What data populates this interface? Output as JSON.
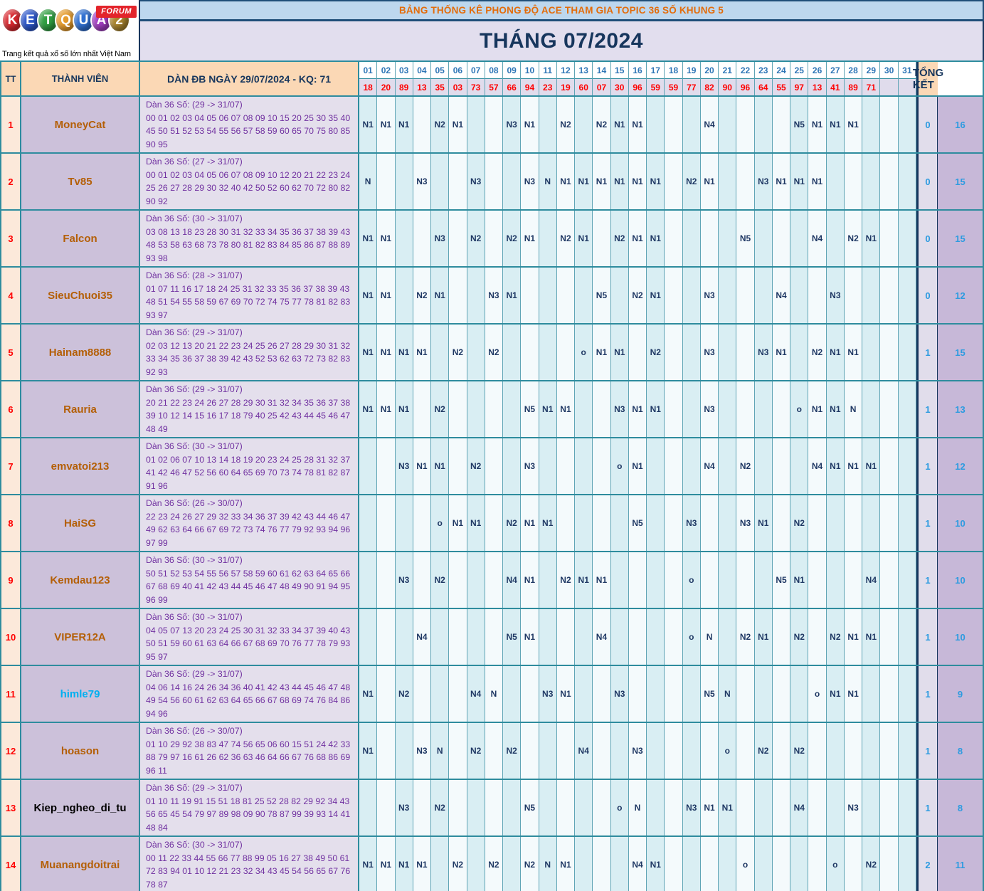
{
  "logo": {
    "letters": [
      {
        "ch": "K",
        "color": "#D7282F"
      },
      {
        "ch": "E",
        "color": "#2B55C8"
      },
      {
        "ch": "T",
        "color": "#2F9E41"
      },
      {
        "ch": "Q",
        "color": "#E59B2C"
      },
      {
        "ch": "U",
        "color": "#2F6FD0"
      },
      {
        "ch": "A",
        "color": "#A13EC0"
      },
      {
        "ch": "2",
        "color": "#A9842E"
      }
    ],
    "forum_label": "FORUM",
    "tagline": "Trang kết quả xổ số lớn nhất Việt Nam"
  },
  "header": {
    "topic_title": "BẢNG THỐNG KÊ PHONG ĐỘ ACE THAM GIA TOPIC 36 SỐ KHUNG 5",
    "month_title": "THÁNG 07/2024"
  },
  "table": {
    "headers": {
      "tt": "TT",
      "member": "THÀNH VIÊN",
      "dan": "DÀN ĐB NGÀY 29/07/2024 - KQ: 71",
      "total": "TỔNG KẾT"
    },
    "days": [
      "01",
      "02",
      "03",
      "04",
      "05",
      "06",
      "07",
      "08",
      "09",
      "10",
      "11",
      "12",
      "13",
      "14",
      "15",
      "16",
      "17",
      "18",
      "19",
      "20",
      "21",
      "22",
      "23",
      "24",
      "25",
      "26",
      "27",
      "28",
      "29",
      "30",
      "31"
    ],
    "kq": [
      "18",
      "20",
      "89",
      "13",
      "35",
      "03",
      "73",
      "57",
      "66",
      "94",
      "23",
      "19",
      "60",
      "07",
      "30",
      "96",
      "59",
      "59",
      "77",
      "82",
      "90",
      "96",
      "64",
      "55",
      "97",
      "13",
      "41",
      "89",
      "71",
      "",
      ""
    ],
    "members": [
      {
        "tt": "1",
        "name": "MoneyCat",
        "name_color": "#B45F06",
        "dan_range": "Dàn 36 Số: (29 -> 31/07)",
        "dan_numbers": "00 01 02 03 04 05 06 07 08 09 10 15 20 25 30 35 40 45 50 51 52 53 54 55 56 57 58 59 60 65 70 75 80 85 90 95",
        "marks": {
          "1": "N1",
          "2": "N1",
          "3": "N1",
          "5": "N2",
          "6": "N1",
          "9": "N3",
          "10": "N1",
          "12": "N2",
          "14": "N2",
          "15": "N1",
          "16": "N1",
          "20": "N4",
          "25": "N5",
          "26": "N1",
          "27": "N1",
          "28": "N1"
        },
        "total_miss": "0",
        "total_win": "16"
      },
      {
        "tt": "2",
        "name": "Tv85",
        "name_color": "#B45F06",
        "dan_range": "Dàn 36 Số: (27 -> 31/07)",
        "dan_numbers": "00 01 02 03 04 05 06 07 08 09 10 12 20 21 22 23 24 25 26 27 28 29 30 32 40 42 50 52 60 62 70 72 80 82 90 92",
        "marks": {
          "1": "N",
          "4": "N3",
          "7": "N3",
          "10": "N3",
          "11": "N",
          "12": "N1",
          "13": "N1",
          "14": "N1",
          "15": "N1",
          "16": "N1",
          "17": "N1",
          "19": "N2",
          "20": "N1",
          "23": "N3",
          "24": "N1",
          "25": "N1",
          "26": "N1"
        },
        "total_miss": "0",
        "total_win": "15"
      },
      {
        "tt": "3",
        "name": "Falcon",
        "name_color": "#B45F06",
        "dan_range": "Dàn 36 Số: (30 -> 31/07)",
        "dan_numbers": "03 08 13 18 23 28 30 31 32 33 34 35 36 37 38 39 43 48 53 58 63 68 73 78 80 81 82 83 84 85 86 87 88 89 93 98",
        "marks": {
          "1": "N1",
          "2": "N1",
          "5": "N3",
          "7": "N2",
          "9": "N2",
          "10": "N1",
          "12": "N2",
          "13": "N1",
          "15": "N2",
          "16": "N1",
          "17": "N1",
          "22": "N5",
          "26": "N4",
          "28": "N2",
          "29": "N1"
        },
        "total_miss": "0",
        "total_win": "15"
      },
      {
        "tt": "4",
        "name": "SieuChuoi35",
        "name_color": "#B45F06",
        "dan_range": "Dàn 36 Số: (28 -> 31/07)",
        "dan_numbers": "01 07 11 16 17 18 24 25 31 32 33 35 36 37 38 39 43 48 51 54 55 58 59 67 69 70 72 74 75 77 78 81 82 83 93 97",
        "marks": {
          "1": "N1",
          "2": "N1",
          "4": "N2",
          "5": "N1",
          "8": "N3",
          "9": "N1",
          "14": "N5",
          "16": "N2",
          "17": "N1",
          "20": "N3",
          "24": "N4",
          "27": "N3"
        },
        "total_miss": "0",
        "total_win": "12"
      },
      {
        "tt": "5",
        "name": "Hainam8888",
        "name_color": "#B45F06",
        "dan_range": "Dàn 36 Số: (29 -> 31/07)",
        "dan_numbers": "02 03 12 13 20 21 22 23 24 25 26 27 28 29 30 31 32 33 34 35 36 37 38 39 42 43 52 53 62 63 72 73 82 83 92 93",
        "marks": {
          "1": "N1",
          "2": "N1",
          "3": "N1",
          "4": "N1",
          "6": "N2",
          "8": "N2",
          "13": "o",
          "14": "N1",
          "15": "N1",
          "17": "N2",
          "20": "N3",
          "23": "N3",
          "24": "N1",
          "26": "N2",
          "27": "N1",
          "28": "N1"
        },
        "total_miss": "1",
        "total_win": "15"
      },
      {
        "tt": "6",
        "name": "Rauria",
        "name_color": "#B45F06",
        "dan_range": "Dàn 36 Số: (29 -> 31/07)",
        "dan_numbers": "20 21 22 23 24 26 27 28 29 30 31 32 34 35 36 37 38 39 10 12 14 15 16 17 18 79 40 25 42 43 44 45 46 47 48 49",
        "marks": {
          "1": "N1",
          "2": "N1",
          "3": "N1",
          "5": "N2",
          "10": "N5",
          "11": "N1",
          "12": "N1",
          "15": "N3",
          "16": "N1",
          "17": "N1",
          "20": "N3",
          "25": "o",
          "26": "N1",
          "27": "N1",
          "28": "N"
        },
        "total_miss": "1",
        "total_win": "13"
      },
      {
        "tt": "7",
        "name": "emvatoi213",
        "name_color": "#B45F06",
        "dan_range": "Dàn 36 Số: (30 -> 31/07)",
        "dan_numbers": "01 02 06 07 10 13 14 18 19 20 23 24 25 28 31 32 37 41 42 46 47 52 56 60 64 65 69 70 73 74 78 81 82 87 91 96",
        "marks": {
          "3": "N3",
          "4": "N1",
          "5": "N1",
          "7": "N2",
          "10": "N3",
          "15": "o",
          "16": "N1",
          "20": "N4",
          "22": "N2",
          "26": "N4",
          "27": "N1",
          "28": "N1",
          "29": "N1"
        },
        "total_miss": "1",
        "total_win": "12"
      },
      {
        "tt": "8",
        "name": "HaiSG",
        "name_color": "#B45F06",
        "dan_range": "Dàn 36 Số: (26 -> 30/07)",
        "dan_numbers": "22 23 24 26 27 29 32 33 34 36 37 39 42 43 44 46 47 49 62 63 64 66 67 69 72 73 74 76 77 79 92 93 94 96 97 99",
        "marks": {
          "5": "o",
          "6": "N1",
          "7": "N1",
          "9": "N2",
          "10": "N1",
          "11": "N1",
          "16": "N5",
          "19": "N3",
          "22": "N3",
          "23": "N1",
          "25": "N2"
        },
        "total_miss": "1",
        "total_win": "10"
      },
      {
        "tt": "9",
        "name": "Kemdau123",
        "name_color": "#B45F06",
        "dan_range": "Dàn 36 Số: (30 -> 31/07)",
        "dan_numbers": "50 51 52 53 54 55 56 57 58 59 60 61 62 63 64 65 66 67 68 69 40 41 42 43 44 45 46 47 48 49 90 91 94 95 96 99",
        "marks": {
          "3": "N3",
          "5": "N2",
          "9": "N4",
          "10": "N1",
          "12": "N2",
          "13": "N1",
          "14": "N1",
          "19": "o",
          "24": "N5",
          "25": "N1",
          "29": "N4"
        },
        "total_miss": "1",
        "total_win": "10"
      },
      {
        "tt": "10",
        "name": "VIPER12A",
        "name_color": "#B45F06",
        "dan_range": "Dàn 36 Số: (30 -> 31/07)",
        "dan_numbers": "04 05 07 13 20 23 24 25 30 31 32 33 34 37 39 40 43 50 51 59 60 61 63 64 66 67 68 69 70 76 77 78 79 93 95 97",
        "marks": {
          "4": "N4",
          "9": "N5",
          "10": "N1",
          "14": "N4",
          "19": "o",
          "20": "N",
          "22": "N2",
          "23": "N1",
          "25": "N2",
          "27": "N2",
          "28": "N1",
          "29": "N1"
        },
        "total_miss": "1",
        "total_win": "10"
      },
      {
        "tt": "11",
        "name": "himle79",
        "name_color": "#00B0F0",
        "dan_range": "Dàn 36 Số: (29 -> 31/07)",
        "dan_numbers": "04 06 14 16 24 26 34 36 40 41 42 43 44 45 46 47 48 49 54 56 60 61 62 63 64 65 66 67 68 69 74 76 84 86 94 96",
        "marks": {
          "1": "N1",
          "3": "N2",
          "7": "N4",
          "8": "N",
          "11": "N3",
          "12": "N1",
          "15": "N3",
          "20": "N5",
          "21": "N",
          "26": "o",
          "27": "N1",
          "28": "N1"
        },
        "total_miss": "1",
        "total_win": "9"
      },
      {
        "tt": "12",
        "name": "hoason",
        "name_color": "#B45F06",
        "dan_range": "Dàn 36 Số: (26 -> 30/07)",
        "dan_numbers": "01 10 29 92 38 83 47 74 56 65 06 60 15 51 24 42 33 88 79 97 16 61 26 62 36 63 46 64 66 67 76 68 86 69 96 11",
        "marks": {
          "1": "N1",
          "4": "N3",
          "5": "N",
          "7": "N2",
          "9": "N2",
          "13": "N4",
          "16": "N3",
          "21": "o",
          "23": "N2",
          "25": "N2"
        },
        "total_miss": "1",
        "total_win": "8"
      },
      {
        "tt": "13",
        "name": "Kiep_ngheo_di_tu",
        "name_color": "#000000",
        "dan_range": "Dàn 36 Số: (29 -> 31/07)",
        "dan_numbers": "01 10 11 19 91 15 51 18 81 25 52 28 82 29 92 34 43 56 65 45 54 79 97 89 98 09 90 78 87 99 39 93 14 41 48 84",
        "marks": {
          "3": "N3",
          "5": "N2",
          "10": "N5",
          "15": "o",
          "16": "N",
          "19": "N3",
          "20": "N1",
          "21": "N1",
          "25": "N4",
          "28": "N3"
        },
        "total_miss": "1",
        "total_win": "8"
      },
      {
        "tt": "14",
        "name": "Muanangdoitrai",
        "name_color": "#B45F06",
        "dan_range": "Dàn 36 Số: (30 -> 31/07)",
        "dan_numbers": "00 11 22 33 44 55 66 77 88 99 05 16 27 38 49 50 61 72 83 94 01 10 12 21 23 32 34 43 45 54 56 65 67 76 78 87",
        "marks": {
          "1": "N1",
          "2": "N1",
          "3": "N1",
          "4": "N1",
          "6": "N2",
          "8": "N2",
          "10": "N2",
          "11": "N",
          "12": "N1",
          "16": "N4",
          "17": "N1",
          "22": "o",
          "27": "o",
          "29": "N2"
        },
        "total_miss": "2",
        "total_win": "11"
      }
    ]
  },
  "colors": {
    "border_teal": "#2E8C9E",
    "border_thin": "#5FA4B5",
    "navy": "#17365D",
    "peach": "#FBD8B5",
    "strip_blue": "#BDD7EE",
    "title_lavender": "#E2DEEE",
    "kq_bg": "#E0DCEC",
    "tt_bg": "#FCE9DA",
    "member_bg": "#CCC1DA",
    "dan_bg": "#E4DFEC",
    "day_a": "#D9EEF3",
    "day_b": "#F4FAFC",
    "total1_bg": "#E1DDEB",
    "total2_bg": "#C7B8D8",
    "topic_orange": "#E36C0A",
    "dan_purple": "#7030A0",
    "kq_red": "#FF0000",
    "day_blue": "#2E75B6",
    "mark_navy": "#1F3864",
    "total_blue": "#2D9BE0",
    "forum_red": "#E3242B"
  }
}
